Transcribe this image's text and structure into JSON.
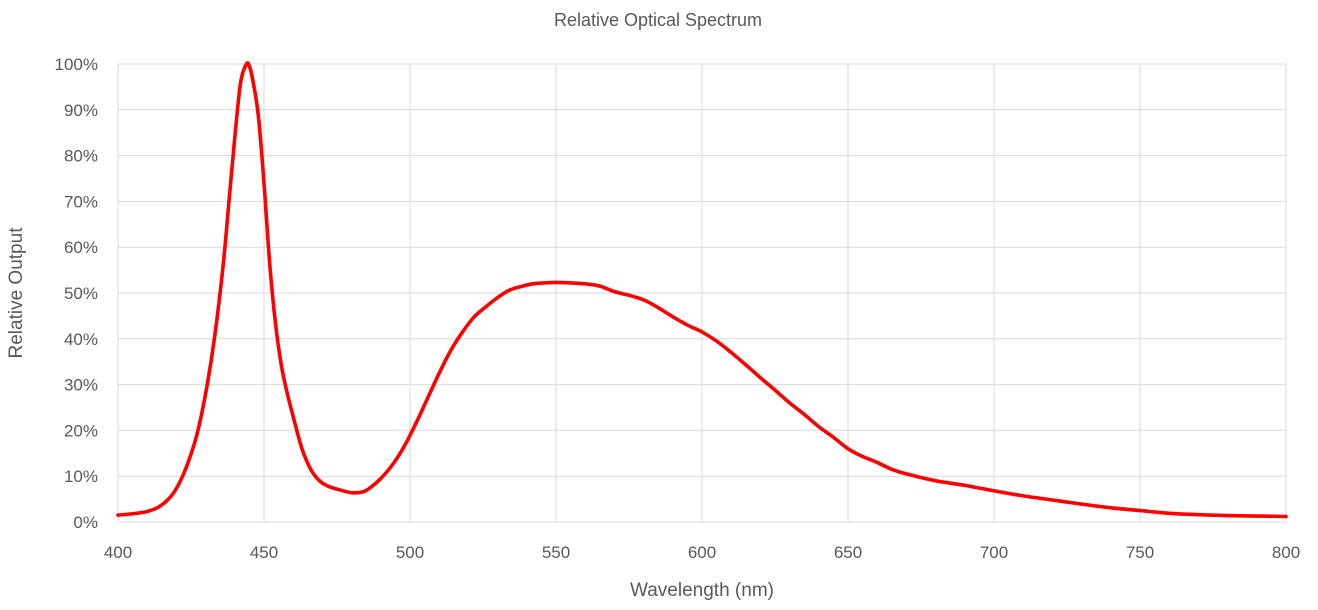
{
  "chart_data": {
    "type": "line",
    "title": "Relative Optical Spectrum",
    "xlabel": "Wavelength (nm)",
    "ylabel": "Relative Output",
    "xlim": [
      400,
      800
    ],
    "ylim": [
      0,
      100
    ],
    "x_ticks": [
      400,
      450,
      500,
      550,
      600,
      650,
      700,
      750,
      800
    ],
    "x_tick_labels": [
      "400",
      "450",
      "500",
      "550",
      "600",
      "650",
      "700",
      "750",
      "800"
    ],
    "y_ticks": [
      0,
      10,
      20,
      30,
      40,
      50,
      60,
      70,
      80,
      90,
      100
    ],
    "y_tick_labels": [
      "0%",
      "10%",
      "20%",
      "30%",
      "40%",
      "50%",
      "60%",
      "70%",
      "80%",
      "90%",
      "100%"
    ],
    "grid": true,
    "legend": "none",
    "series_color": "#ff0000",
    "series": [
      {
        "x": [
          400,
          405,
          410,
          414,
          418,
          421,
          424,
          427,
          430,
          433,
          436,
          438,
          440,
          442,
          444,
          445,
          446,
          448,
          450,
          452,
          454,
          456,
          458,
          460,
          463,
          466,
          469,
          472,
          476,
          480,
          484,
          487,
          490,
          494,
          498,
          502,
          506,
          510,
          514,
          518,
          522,
          526,
          530,
          534,
          538,
          542,
          546,
          550,
          555,
          560,
          565,
          570,
          575,
          580,
          585,
          590,
          595,
          600,
          605,
          610,
          615,
          620,
          625,
          630,
          635,
          640,
          645,
          650,
          655,
          660,
          665,
          670,
          680,
          690,
          700,
          710,
          720,
          730,
          740,
          750,
          760,
          770,
          780,
          790,
          800
        ],
        "y": [
          1.5,
          1.8,
          2.3,
          3.3,
          5.5,
          8.5,
          13,
          19,
          28,
          40,
          56,
          70,
          84,
          96,
          100,
          99.5,
          97,
          89,
          74,
          56,
          43,
          34,
          28,
          23,
          16,
          11.5,
          9,
          7.8,
          7,
          6.4,
          6.6,
          7.8,
          9.5,
          12.5,
          16.5,
          21.5,
          27,
          32.5,
          37.5,
          41.5,
          44.8,
          47,
          49,
          50.6,
          51.4,
          52,
          52.2,
          52.3,
          52.2,
          52,
          51.5,
          50.3,
          49.5,
          48.5,
          46.8,
          44.8,
          43,
          41.5,
          39.5,
          37,
          34.3,
          31.5,
          28.8,
          26,
          23.5,
          20.8,
          18.5,
          16,
          14.3,
          13,
          11.5,
          10.5,
          9,
          8,
          6.8,
          5.7,
          4.8,
          3.9,
          3.1,
          2.5,
          1.9,
          1.6,
          1.4,
          1.3,
          1.2
        ]
      }
    ]
  }
}
